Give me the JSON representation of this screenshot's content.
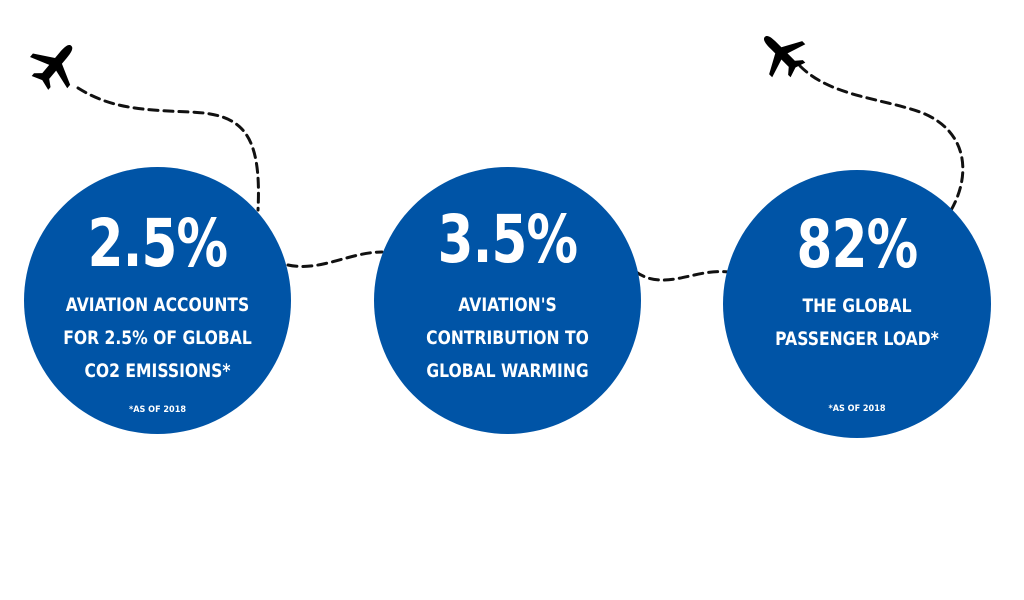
{
  "colors": {
    "circle": "#0054a6",
    "text": "#ffffff",
    "path": "#111111",
    "background": "#ffffff"
  },
  "icons": {
    "left_plane": "airplane-icon",
    "right_plane": "airplane-icon"
  },
  "stats": [
    {
      "value": "2.5%",
      "lines": [
        "Aviation accounts",
        "for 2.5% of global",
        "CO2 emissions*"
      ],
      "note": "*As of 2018"
    },
    {
      "value": "3.5%",
      "lines": [
        "Aviation's",
        "contribution to",
        "global warming"
      ],
      "note": ""
    },
    {
      "value": "82%",
      "lines": [
        "The global",
        "passenger load*"
      ],
      "note": "*As of 2018"
    }
  ]
}
